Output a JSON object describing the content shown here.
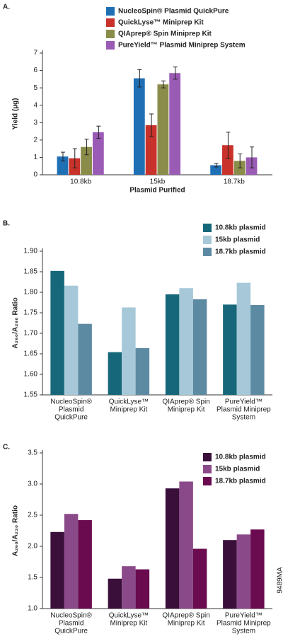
{
  "chart_data": [
    {
      "type": "bar",
      "panel": "A.",
      "y_label": "Yield (µg)",
      "x_label": "Plasmid Purified",
      "categories": [
        "10.8kb",
        "15kb",
        "18.7kb"
      ],
      "ylim": [
        0,
        7
      ],
      "yticks": [
        0,
        1,
        2,
        3,
        4,
        5,
        6,
        7
      ],
      "legend": "top",
      "series": [
        {
          "name": "NucleoSpin® Plasmid QuickPure",
          "color": "#1f6fb5",
          "values": [
            1.05,
            5.55,
            0.55
          ],
          "errors": [
            0.25,
            0.5,
            0.1
          ]
        },
        {
          "name": "QuickLyse™ Miniprep Kit",
          "color": "#c8322b",
          "values": [
            0.95,
            2.85,
            1.7
          ],
          "errors": [
            0.55,
            0.65,
            0.75
          ]
        },
        {
          "name": "QIAprep® Spin Miniprep Kit",
          "color": "#8a8c4a",
          "values": [
            1.6,
            5.2,
            0.8
          ],
          "errors": [
            0.45,
            0.2,
            0.4
          ]
        },
        {
          "name": "PureYield™ Plasmid Miniprep System",
          "color": "#9a5bb5",
          "values": [
            2.45,
            5.85,
            1.0
          ],
          "errors": [
            0.35,
            0.35,
            0.6
          ]
        }
      ]
    },
    {
      "type": "bar",
      "panel": "B.",
      "y_label": "A₂₆₀/A₂₈₀ Ratio",
      "categories": [
        [
          "NucleoSpin®",
          "Plasmid",
          "QuickPure"
        ],
        [
          "QuickLyse™",
          "Miniprep Kit"
        ],
        [
          "QIAprep® Spin",
          "Miniprep Kit"
        ],
        [
          "PureYield™",
          "Plasmid Miniprep",
          "System"
        ]
      ],
      "ylim": [
        1.55,
        1.9
      ],
      "yticks": [
        1.55,
        {
          "value": 1.6,
          "label": "1.60"
        },
        1.65,
        {
          "value": 1.7,
          "label": "1.70"
        },
        1.75,
        {
          "value": 1.8,
          "label": "1.80"
        },
        1.85,
        {
          "value": 1.9,
          "label": "1.90"
        }
      ],
      "legend": "top-right",
      "series": [
        {
          "name": "10.8kb plasmid",
          "color": "#17677a",
          "values": [
            1.852,
            1.654,
            1.795,
            1.77
          ]
        },
        {
          "name": "15kb plasmid",
          "color": "#a6c8d8",
          "values": [
            1.816,
            1.763,
            1.81,
            1.823
          ]
        },
        {
          "name": "18.7kb plasmid",
          "color": "#5d8aa3",
          "values": [
            1.723,
            1.664,
            1.783,
            1.769
          ]
        }
      ]
    },
    {
      "type": "bar",
      "panel": "C.",
      "y_label": "A₂₆₀/A₂₃₀ Ratio",
      "figure_id": "9489MA",
      "categories": [
        [
          "NucleoSpin®",
          "Plasmid",
          "QuickPure"
        ],
        [
          "QuickLyse™",
          "Miniprep Kit"
        ],
        [
          "QIAprep® Spin",
          "Miniprep Kit"
        ],
        [
          "PureYield™",
          "Plasmid Miniprep",
          "System"
        ]
      ],
      "ylim": [
        1.0,
        3.5
      ],
      "yticks": [
        {
          "value": 1.0,
          "label": "1.0"
        },
        1.5,
        {
          "value": 2.0,
          "label": "2.0"
        },
        2.5,
        {
          "value": 3.0,
          "label": "3.0"
        },
        3.5
      ],
      "legend": "top-right",
      "series": [
        {
          "name": "10.8kb plasmid",
          "color": "#3a0f3a",
          "values": [
            2.23,
            1.48,
            2.93,
            2.1
          ]
        },
        {
          "name": "15kb plasmid",
          "color": "#8a4a8a",
          "values": [
            2.52,
            1.68,
            3.04,
            2.19
          ]
        },
        {
          "name": "18.7kb plasmid",
          "color": "#6a0a4f",
          "values": [
            2.42,
            1.63,
            1.96,
            2.27
          ]
        }
      ]
    }
  ]
}
